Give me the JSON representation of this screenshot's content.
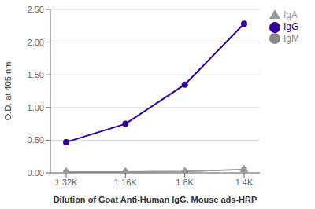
{
  "chart_data": {
    "type": "line",
    "xlabel": "Dilution of Goat Anti-Human IgG, Mouse ads-HRP",
    "ylabel": "O.D. at 405 nm",
    "categories": [
      "1:32K",
      "1:16K",
      "1:8K",
      "1:4K"
    ],
    "series": [
      {
        "name": "IgG",
        "color": "#330099",
        "marker": "circle",
        "values": [
          0.47,
          0.75,
          1.35,
          2.28
        ]
      },
      {
        "name": "IgM",
        "color": "#888888",
        "marker": "circle",
        "values": [
          0.015,
          0.015,
          0.02,
          0.05
        ]
      },
      {
        "name": "IgA",
        "color": "#999999",
        "marker": "triangle",
        "values": [
          0.015,
          0.015,
          0.02,
          0.05
        ]
      }
    ],
    "ylim": [
      0,
      2.5
    ],
    "yticks": [
      {
        "value": 0,
        "label": "0.00"
      },
      {
        "value": 0.5,
        "label": "0.50"
      },
      {
        "value": 1,
        "label": "1.00"
      },
      {
        "value": 1.5,
        "label": "1.50"
      },
      {
        "value": 2,
        "label": "2.00"
      },
      {
        "value": 2.5,
        "label": "2.50"
      }
    ],
    "grid": "y",
    "legend": "right"
  }
}
